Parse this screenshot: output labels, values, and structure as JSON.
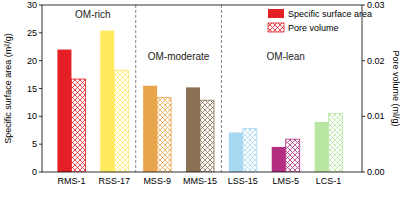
{
  "chart_data": {
    "type": "bar",
    "categories": [
      "RMS-1",
      "RSS-17",
      "MSS-9",
      "MMS-15",
      "LSS-15",
      "LMS-5",
      "LCS-1"
    ],
    "series": [
      {
        "name": "Specific surface area",
        "values": [
          22.0,
          25.4,
          15.5,
          15.2,
          7.1,
          4.5,
          9.0
        ],
        "colors": [
          "#e41f26",
          "#ffe95c",
          "#e9a54c",
          "#8c7154",
          "#a6d8f2",
          "#b32e80",
          "#b9e7a1"
        ]
      },
      {
        "name": "Pore volume",
        "axis": "y2",
        "values": [
          0.0167,
          0.0183,
          0.0134,
          0.0129,
          0.0078,
          0.0059,
          0.0105
        ],
        "colors": [
          "#e41f26",
          "#ffe95c",
          "#e9a54c",
          "#8c7154",
          "#a6d8f2",
          "#b32e80",
          "#b9e7a1"
        ]
      }
    ],
    "y_label": "Specific surface area (m²/g)",
    "y2_label": "Pore volume (ml/g)",
    "ylim": [
      0,
      30
    ],
    "yticks": [
      0,
      5,
      10,
      15,
      20,
      25,
      30
    ],
    "y2lim": [
      0,
      0.03
    ],
    "y2ticks": [
      {
        "value": 0,
        "label": "0.00"
      },
      0.01,
      0.02,
      0.03
    ],
    "annotations": [
      "OM-rich",
      "OM-moderate",
      "OM-lean"
    ],
    "legend": "upper right",
    "grid": false
  }
}
